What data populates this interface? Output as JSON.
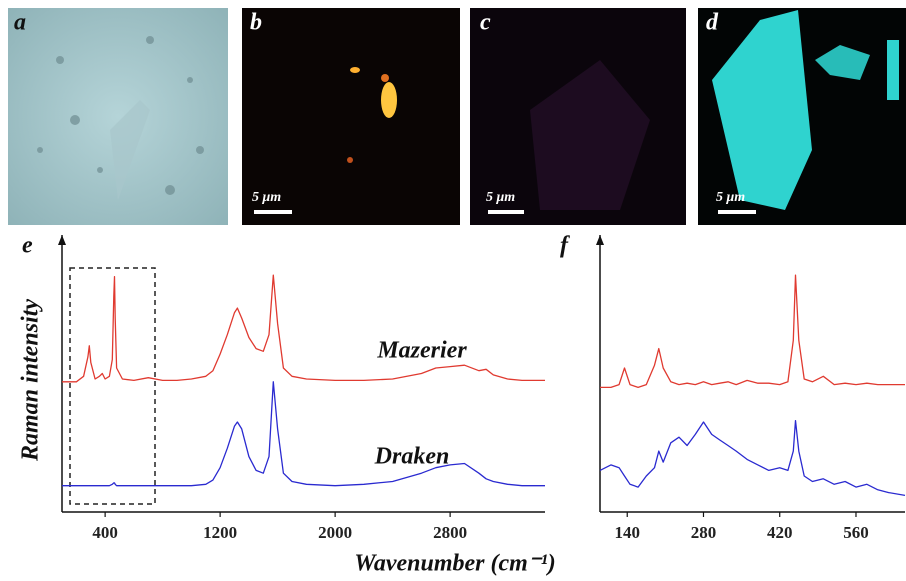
{
  "panels": [
    {
      "label": "a"
    },
    {
      "label": "b",
      "scale_bar": "5 μm"
    },
    {
      "label": "c",
      "scale_bar": "5 μm"
    },
    {
      "label": "d",
      "scale_bar": "5 μm"
    }
  ],
  "y_axis_label": "Raman intensity",
  "x_axis_label": "Wavenumber (cm⁻¹)",
  "chart_data": [
    {
      "type": "line",
      "label": "e",
      "x": [
        100,
        200,
        250,
        280,
        290,
        300,
        330,
        360,
        380,
        400,
        430,
        450,
        460,
        465,
        470,
        480,
        500,
        520,
        600,
        700,
        800,
        900,
        1000,
        1100,
        1150,
        1200,
        1250,
        1300,
        1320,
        1350,
        1400,
        1450,
        1500,
        1540,
        1570,
        1600,
        1640,
        1700,
        1800,
        2000,
        2200,
        2400,
        2600,
        2700,
        2800,
        2900,
        3000,
        3050,
        3100,
        3200,
        3300,
        3460
      ],
      "series": [
        {
          "name": "Mazerier",
          "color": "#e03a30",
          "values": [
            47,
            47,
            49,
            56,
            60,
            54,
            48,
            49,
            50,
            48,
            49,
            55,
            78,
            85,
            70,
            52,
            50,
            48,
            47.5,
            48.5,
            47.5,
            47.5,
            48,
            49,
            51,
            57,
            64,
            72,
            73.6,
            70,
            63,
            59,
            58,
            64,
            85.5,
            68,
            52,
            49,
            48,
            47.5,
            47.5,
            48,
            50,
            52,
            52.5,
            53,
            51,
            51.5,
            49.5,
            48,
            47.5,
            47.5
          ]
        },
        {
          "name": "Draken",
          "color": "#2a2ad0",
          "values": [
            9.5,
            9.5,
            9.5,
            9.5,
            9.5,
            9.5,
            9.5,
            9.5,
            9.5,
            9.5,
            9.5,
            10,
            10.5,
            10.5,
            10,
            9.5,
            9.5,
            9.5,
            9.5,
            9.5,
            9.5,
            9.5,
            9.5,
            10,
            11.5,
            16,
            23,
            31,
            32.5,
            30,
            20,
            15,
            14,
            20,
            47,
            30,
            14,
            11,
            10,
            9.5,
            10,
            11,
            14,
            16,
            17,
            17.5,
            14,
            12,
            11,
            10,
            9.5,
            9.5
          ]
        }
      ],
      "xlim": [
        100,
        3460
      ],
      "xticks": [
        400,
        1200,
        2000,
        2800
      ],
      "ylim": [
        0,
        100
      ]
    },
    {
      "type": "line",
      "label": "f",
      "x": [
        90,
        110,
        125,
        135,
        145,
        160,
        175,
        190,
        198,
        206,
        220,
        235,
        250,
        265,
        280,
        295,
        310,
        325,
        340,
        360,
        380,
        400,
        420,
        435,
        445,
        449,
        455,
        465,
        480,
        500,
        520,
        540,
        560,
        580,
        600,
        620,
        650
      ],
      "series": [
        {
          "name": "Mazerier",
          "color": "#e03a30",
          "values": [
            45,
            45,
            46,
            52,
            46,
            45,
            46,
            53,
            59,
            52,
            47,
            46,
            46.5,
            46,
            47,
            46,
            46.5,
            47,
            46,
            47.5,
            46.5,
            46.5,
            46,
            47,
            62,
            85.5,
            62,
            48,
            47,
            49,
            46,
            46.5,
            46,
            46.5,
            46,
            46,
            46
          ]
        },
        {
          "name": "Draken",
          "color": "#2a2ad0",
          "values": [
            15,
            17,
            16,
            13,
            10,
            9,
            13,
            16,
            22,
            18,
            25,
            27,
            24,
            28,
            32.5,
            28,
            26,
            24,
            22,
            19,
            17,
            15,
            16,
            15,
            22,
            33,
            22,
            13,
            11,
            12,
            10,
            11,
            9,
            10,
            8,
            7,
            6
          ]
        }
      ],
      "xlim": [
        90,
        650
      ],
      "xticks": [
        140,
        280,
        420,
        560
      ],
      "ylim": [
        0,
        100
      ]
    }
  ]
}
